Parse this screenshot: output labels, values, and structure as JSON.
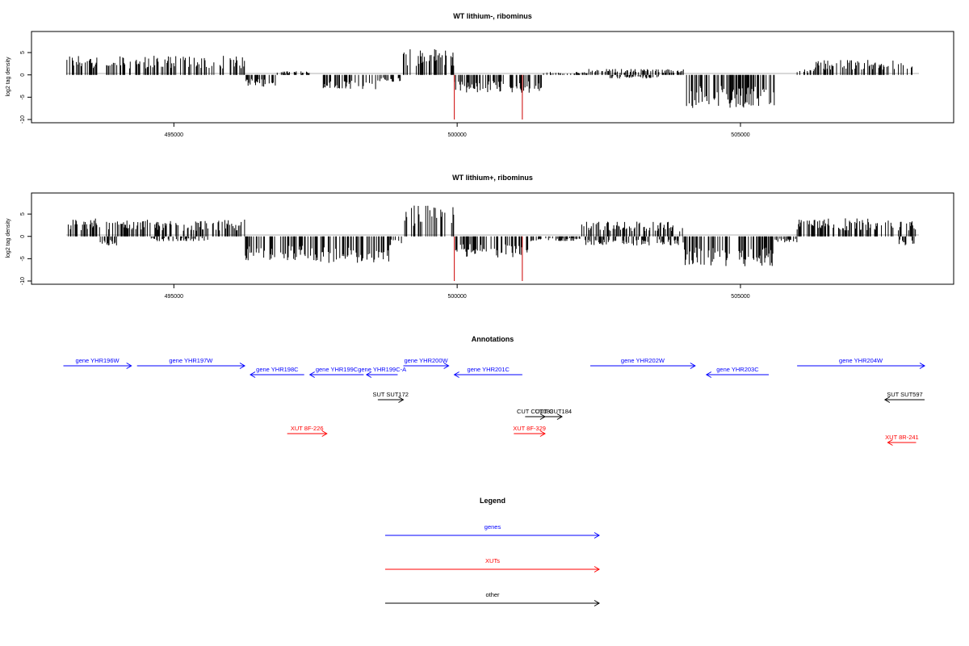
{
  "chart_data": [
    {
      "type": "bar",
      "title": "WT lithium-, ribominus",
      "ylabel": "log2 tag density",
      "xlabel": "",
      "x_range": [
        493100,
        508150
      ],
      "x_ticks": [
        495000,
        500000,
        505000
      ],
      "x_tick_labels": [
        "495000",
        "500000",
        "505000"
      ],
      "y_ticks": [
        -10,
        -5,
        0,
        5
      ],
      "y_tick_labels": [
        "-10",
        "-5",
        "0",
        "5"
      ],
      "ylim": [
        -10,
        9
      ],
      "bar_color": "#000000",
      "highlight_color": "#cc0000",
      "segments": [
        {
          "x0": 493100,
          "x1": 493700,
          "sign": 1,
          "level": 3.3
        },
        {
          "x0": 493800,
          "x1": 494050,
          "sign": 1,
          "level": 2.3
        },
        {
          "x0": 494050,
          "x1": 496250,
          "sign": 1,
          "level": 3.2
        },
        {
          "x0": 496250,
          "x1": 496800,
          "sign": -1,
          "level": 2.0
        },
        {
          "x0": 496800,
          "x1": 497400,
          "sign": 1,
          "level": 0.6
        },
        {
          "x0": 497600,
          "x1": 498600,
          "sign": -1,
          "level": 2.4
        },
        {
          "x0": 498600,
          "x1": 499000,
          "sign": -1,
          "level": 1.2
        },
        {
          "x0": 499050,
          "x1": 499950,
          "sign": 1,
          "level": 4.5
        },
        {
          "x0": 499950,
          "x1": 501500,
          "sign": -1,
          "level": 3.0
        },
        {
          "x0": 501500,
          "x1": 502300,
          "sign": 1,
          "level": 0.5
        },
        {
          "x0": 502300,
          "x1": 504000,
          "sign": 1,
          "level": 1.0
        },
        {
          "x0": 502700,
          "x1": 503600,
          "sign": -1,
          "level": 0.6
        },
        {
          "x0": 504000,
          "x1": 505600,
          "sign": -1,
          "level": 5.5
        },
        {
          "x0": 506000,
          "x1": 506300,
          "sign": 1,
          "level": 1.0
        },
        {
          "x0": 506300,
          "x1": 508100,
          "sign": 1,
          "level": 2.5
        }
      ],
      "spikes": [
        {
          "x": 499950,
          "value": -10
        },
        {
          "x": 501150,
          "value": -10
        }
      ]
    },
    {
      "type": "bar",
      "title": "WT lithium+, ribominus",
      "ylabel": "log2 tag density",
      "xlabel": "",
      "x_range": [
        493100,
        508150
      ],
      "x_ticks": [
        495000,
        500000,
        505000
      ],
      "x_tick_labels": [
        "495000",
        "500000",
        "505000"
      ],
      "y_ticks": [
        -10,
        -5,
        0,
        5
      ],
      "y_tick_labels": [
        "-10",
        "-5",
        "0",
        "5"
      ],
      "ylim": [
        -10,
        9
      ],
      "bar_color": "#000000",
      "highlight_color": "#cc0000",
      "segments": [
        {
          "x0": 493100,
          "x1": 493700,
          "sign": 1,
          "level": 3.0
        },
        {
          "x0": 493700,
          "x1": 494000,
          "sign": -1,
          "level": 1.6
        },
        {
          "x0": 493800,
          "x1": 496250,
          "sign": 1,
          "level": 2.8
        },
        {
          "x0": 494600,
          "x1": 495600,
          "sign": -1,
          "level": 0.8
        },
        {
          "x0": 496250,
          "x1": 497400,
          "sign": -1,
          "level": 4.0
        },
        {
          "x0": 497400,
          "x1": 498800,
          "sign": -1,
          "level": 4.5
        },
        {
          "x0": 498800,
          "x1": 499050,
          "sign": -1,
          "level": 1.5
        },
        {
          "x0": 499050,
          "x1": 499950,
          "sign": 1,
          "level": 5.2
        },
        {
          "x0": 499950,
          "x1": 501300,
          "sign": -1,
          "level": 3.5
        },
        {
          "x0": 501300,
          "x1": 502200,
          "sign": -1,
          "level": 0.8
        },
        {
          "x0": 502200,
          "x1": 504000,
          "sign": 1,
          "level": 2.5
        },
        {
          "x0": 502200,
          "x1": 504000,
          "sign": -1,
          "level": 1.5
        },
        {
          "x0": 504000,
          "x1": 505600,
          "sign": -1,
          "level": 5.0
        },
        {
          "x0": 505600,
          "x1": 506000,
          "sign": -1,
          "level": 1.0
        },
        {
          "x0": 506000,
          "x1": 508100,
          "sign": 1,
          "level": 3.0
        },
        {
          "x0": 507800,
          "x1": 508100,
          "sign": -1,
          "level": 1.5
        }
      ],
      "spikes": [
        {
          "x": 499950,
          "value": -10
        },
        {
          "x": 501150,
          "value": -10
        }
      ]
    }
  ],
  "annotations": {
    "title": "Annotations",
    "x_range": [
      493100,
      508150
    ],
    "items": [
      {
        "label": "gene YHR196W",
        "category": "gene",
        "start": 493050,
        "end": 494250,
        "row": 0
      },
      {
        "label": "gene YHR197W",
        "category": "gene",
        "start": 494350,
        "end": 496250,
        "row": 0
      },
      {
        "label": "gene YHR198C",
        "category": "gene",
        "start": 496350,
        "end": 497300,
        "row": 1
      },
      {
        "label": "gene YHR199C",
        "category": "gene",
        "start": 497400,
        "end": 498350,
        "row": 1
      },
      {
        "label": "gene YHR199C-A",
        "category": "gene",
        "start": 498400,
        "end": 498950,
        "row": 1
      },
      {
        "label": "gene YHR200W",
        "category": "gene",
        "start": 499050,
        "end": 499850,
        "row": 0
      },
      {
        "label": "gene YHR201C",
        "category": "gene",
        "start": 499950,
        "end": 501150,
        "row": 1
      },
      {
        "label": "gene YHR202W",
        "category": "gene",
        "start": 502350,
        "end": 504200,
        "row": 0
      },
      {
        "label": "gene YHR203C",
        "category": "gene",
        "start": 504400,
        "end": 505500,
        "row": 1
      },
      {
        "label": "gene YHR204W",
        "category": "gene",
        "start": 506000,
        "end": 508250,
        "row": 0
      },
      {
        "label": "SUT SUT172",
        "category": "other",
        "start": 498600,
        "end": 499050,
        "row": 2
      },
      {
        "label": "CUT CUT183",
        "category": "other",
        "start": 501200,
        "end": 501550,
        "row": 3
      },
      {
        "label": "CUT CUT184",
        "category": "other",
        "start": 501550,
        "end": 501850,
        "row": 3
      },
      {
        "label": "SUT SUT597",
        "category": "other",
        "start": 507550,
        "end": 508250,
        "row": 2
      },
      {
        "label": "XUT 8F-226",
        "category": "xut",
        "start": 497000,
        "end": 497700,
        "row": 4
      },
      {
        "label": "XUT 8F-329",
        "category": "xut",
        "start": 501000,
        "end": 501550,
        "row": 4
      },
      {
        "label": "XUT 8R-241",
        "category": "xut",
        "start": 507600,
        "end": 508100,
        "row": 5
      }
    ]
  },
  "legend": {
    "title": "Legend",
    "entries": [
      {
        "label": "genes",
        "category": "gene"
      },
      {
        "label": "XUTs",
        "category": "xut"
      },
      {
        "label": "other",
        "category": "other"
      }
    ]
  },
  "colors": {
    "gene": "#0000ff",
    "xut": "#ff0000",
    "other": "#000000",
    "axis": "#000000",
    "baseline": "#999999"
  }
}
